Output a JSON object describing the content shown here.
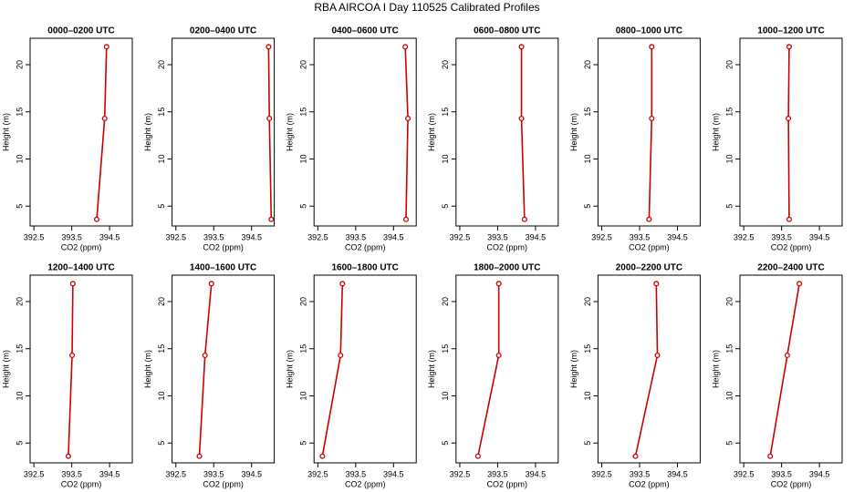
{
  "title": "RBA AIRCOA I  Day 110525  Calibrated Profiles",
  "chart_data": [
    {
      "type": "line",
      "title": "0000–0200 UTC",
      "xlabel": "CO2 (ppm)",
      "ylabel": "Height (m)",
      "color": "#cc0000",
      "x": [
        394.42,
        394.37,
        394.16
      ],
      "values": [
        21.9,
        14.3,
        3.6
      ],
      "xlim": [
        392.4,
        395.1
      ],
      "xticks": [
        392.5,
        393.5,
        394.5
      ],
      "ylim": [
        2.9,
        22.8
      ],
      "yticks": [
        5,
        10,
        15,
        20
      ]
    },
    {
      "type": "line",
      "title": "0200–0400 UTC",
      "xlabel": "CO2 (ppm)",
      "ylabel": "Height (m)",
      "color": "#cc0000",
      "x": [
        394.95,
        394.97,
        395.02
      ],
      "values": [
        21.9,
        14.3,
        3.6
      ],
      "xlim": [
        392.4,
        395.1
      ],
      "xticks": [
        392.5,
        393.5,
        394.5
      ],
      "ylim": [
        2.9,
        22.8
      ],
      "yticks": [
        5,
        10,
        15,
        20
      ]
    },
    {
      "type": "line",
      "title": "0400–0600 UTC",
      "xlabel": "CO2 (ppm)",
      "ylabel": "Height (m)",
      "color": "#cc0000",
      "x": [
        394.81,
        394.88,
        394.83
      ],
      "values": [
        21.9,
        14.3,
        3.6
      ],
      "xlim": [
        392.4,
        395.1
      ],
      "xticks": [
        392.5,
        393.5,
        394.5
      ],
      "ylim": [
        2.9,
        22.8
      ],
      "yticks": [
        5,
        10,
        15,
        20
      ]
    },
    {
      "type": "line",
      "title": "0600–0800 UTC",
      "xlabel": "CO2 (ppm)",
      "ylabel": "Height (m)",
      "color": "#cc0000",
      "x": [
        394.13,
        394.13,
        394.21
      ],
      "values": [
        21.9,
        14.3,
        3.6
      ],
      "xlim": [
        392.4,
        395.1
      ],
      "xticks": [
        392.5,
        393.5,
        394.5
      ],
      "ylim": [
        2.9,
        22.8
      ],
      "yticks": [
        5,
        10,
        15,
        20
      ]
    },
    {
      "type": "line",
      "title": "0800–1000 UTC",
      "xlabel": "CO2 (ppm)",
      "ylabel": "Height (m)",
      "color": "#cc0000",
      "x": [
        393.82,
        393.82,
        393.75
      ],
      "values": [
        21.9,
        14.3,
        3.6
      ],
      "xlim": [
        392.4,
        395.1
      ],
      "xticks": [
        392.5,
        393.5,
        394.5
      ],
      "ylim": [
        2.9,
        22.8
      ],
      "yticks": [
        5,
        10,
        15,
        20
      ]
    },
    {
      "type": "line",
      "title": "1000–1200 UTC",
      "xlabel": "CO2 (ppm)",
      "ylabel": "Height (m)",
      "color": "#cc0000",
      "x": [
        393.7,
        393.68,
        393.7
      ],
      "values": [
        21.9,
        14.3,
        3.6
      ],
      "xlim": [
        392.4,
        395.1
      ],
      "xticks": [
        392.5,
        393.5,
        394.5
      ],
      "ylim": [
        2.9,
        22.8
      ],
      "yticks": [
        5,
        10,
        15,
        20
      ]
    },
    {
      "type": "line",
      "title": "1200–1400 UTC",
      "xlabel": "CO2 (ppm)",
      "ylabel": "Height (m)",
      "color": "#cc0000",
      "x": [
        393.53,
        393.51,
        393.41
      ],
      "values": [
        21.9,
        14.3,
        3.6
      ],
      "xlim": [
        392.4,
        395.1
      ],
      "xticks": [
        392.5,
        393.5,
        394.5
      ],
      "ylim": [
        2.9,
        22.8
      ],
      "yticks": [
        5,
        10,
        15,
        20
      ]
    },
    {
      "type": "line",
      "title": "1400–1600 UTC",
      "xlabel": "CO2 (ppm)",
      "ylabel": "Height (m)",
      "color": "#cc0000",
      "x": [
        393.44,
        393.27,
        393.12
      ],
      "values": [
        21.9,
        14.3,
        3.6
      ],
      "xlim": [
        392.4,
        395.1
      ],
      "xticks": [
        392.5,
        393.5,
        394.5
      ],
      "ylim": [
        2.9,
        22.8
      ],
      "yticks": [
        5,
        10,
        15,
        20
      ]
    },
    {
      "type": "line",
      "title": "1600–1800 UTC",
      "xlabel": "CO2 (ppm)",
      "ylabel": "Height (m)",
      "color": "#cc0000",
      "x": [
        393.15,
        393.1,
        392.62
      ],
      "values": [
        21.9,
        14.3,
        3.6
      ],
      "xlim": [
        392.4,
        395.1
      ],
      "xticks": [
        392.5,
        393.5,
        394.5
      ],
      "ylim": [
        2.9,
        22.8
      ],
      "yticks": [
        5,
        10,
        15,
        20
      ]
    },
    {
      "type": "line",
      "title": "1800–2000 UTC",
      "xlabel": "CO2 (ppm)",
      "ylabel": "Height (m)",
      "color": "#cc0000",
      "x": [
        393.53,
        393.53,
        392.98
      ],
      "values": [
        21.9,
        14.3,
        3.6
      ],
      "xlim": [
        392.4,
        395.1
      ],
      "xticks": [
        392.5,
        393.5,
        394.5
      ],
      "ylim": [
        2.9,
        22.8
      ],
      "yticks": [
        5,
        10,
        15,
        20
      ]
    },
    {
      "type": "line",
      "title": "2000–2200 UTC",
      "xlabel": "CO2 (ppm)",
      "ylabel": "Height (m)",
      "color": "#cc0000",
      "x": [
        393.94,
        393.97,
        393.39
      ],
      "values": [
        21.9,
        14.3,
        3.6
      ],
      "xlim": [
        392.4,
        395.1
      ],
      "xticks": [
        392.5,
        393.5,
        394.5
      ],
      "ylim": [
        2.9,
        22.8
      ],
      "yticks": [
        5,
        10,
        15,
        20
      ]
    },
    {
      "type": "line",
      "title": "2200–2400 UTC",
      "xlabel": "CO2 (ppm)",
      "ylabel": "Height (m)",
      "color": "#cc0000",
      "x": [
        393.97,
        393.65,
        393.2
      ],
      "values": [
        21.9,
        14.3,
        3.6
      ],
      "xlim": [
        392.4,
        395.1
      ],
      "xticks": [
        392.5,
        393.5,
        394.5
      ],
      "ylim": [
        2.9,
        22.8
      ],
      "yticks": [
        5,
        10,
        15,
        20
      ]
    }
  ]
}
